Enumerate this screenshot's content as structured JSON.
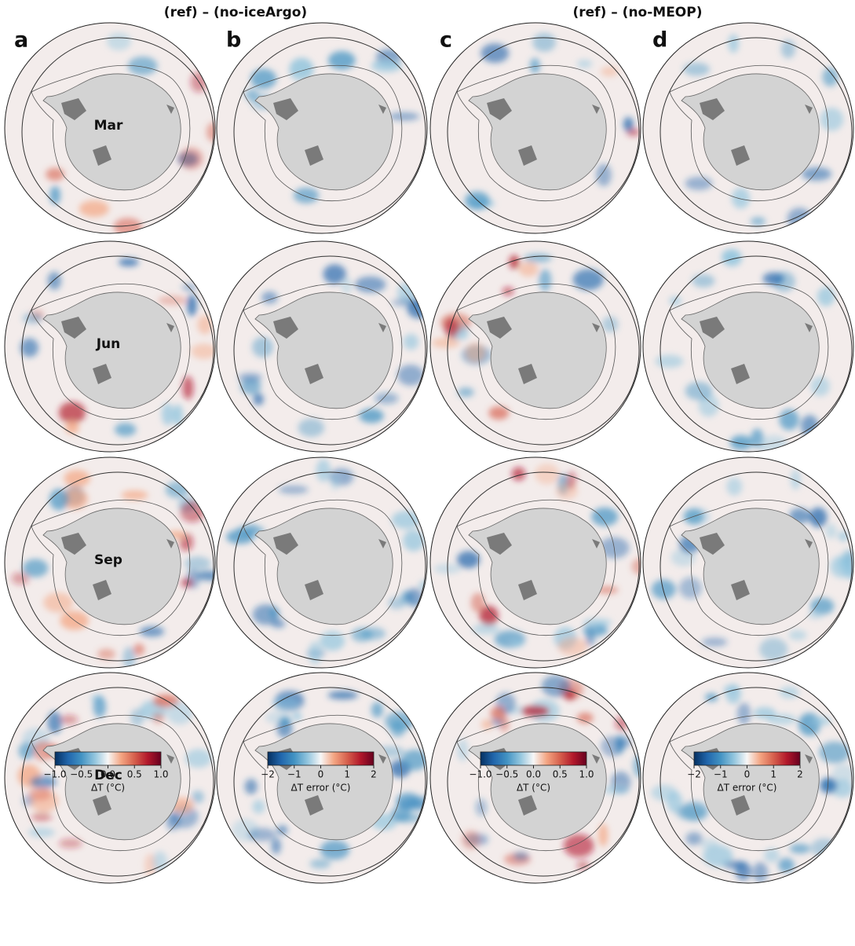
{
  "header": {
    "left": "(ref) – (no-iceArgo)",
    "right": "(ref) – (no-MEOP)"
  },
  "panels": [
    "a",
    "b",
    "c",
    "d"
  ],
  "rows": [
    "Mar",
    "Jun",
    "Sep",
    "Dec"
  ],
  "colorbars": [
    {
      "label": "ΔT (°C)",
      "lim": [
        -1,
        1
      ],
      "ticks": [
        {
          "value": -1,
          "label": "−1.0"
        },
        {
          "value": -0.5,
          "label": "−0.5"
        },
        {
          "value": 0,
          "label": "0.0"
        },
        {
          "value": 0.5,
          "label": "0.5"
        },
        {
          "value": 1,
          "label": "1.0"
        }
      ]
    },
    {
      "label": "ΔT error (°C)",
      "lim": [
        -2,
        2
      ],
      "ticks": [
        {
          "value": -2,
          "label": "−2"
        },
        {
          "value": -1,
          "label": "−1"
        },
        0,
        1,
        2
      ]
    },
    {
      "label": "ΔT (°C)",
      "lim": [
        -1,
        1
      ],
      "ticks": [
        {
          "value": -1,
          "label": "−1.0"
        },
        {
          "value": -0.5,
          "label": "−0.5"
        },
        {
          "value": 0,
          "label": "0.0"
        },
        {
          "value": 0.5,
          "label": "0.5"
        },
        {
          "value": 1,
          "label": "1.0"
        }
      ]
    },
    {
      "label": "ΔT error (°C)",
      "lim": [
        -2,
        2
      ],
      "ticks": [
        {
          "value": -2,
          "label": "−2"
        },
        {
          "value": -1,
          "label": "−1"
        },
        0,
        1,
        2
      ]
    }
  ]
}
